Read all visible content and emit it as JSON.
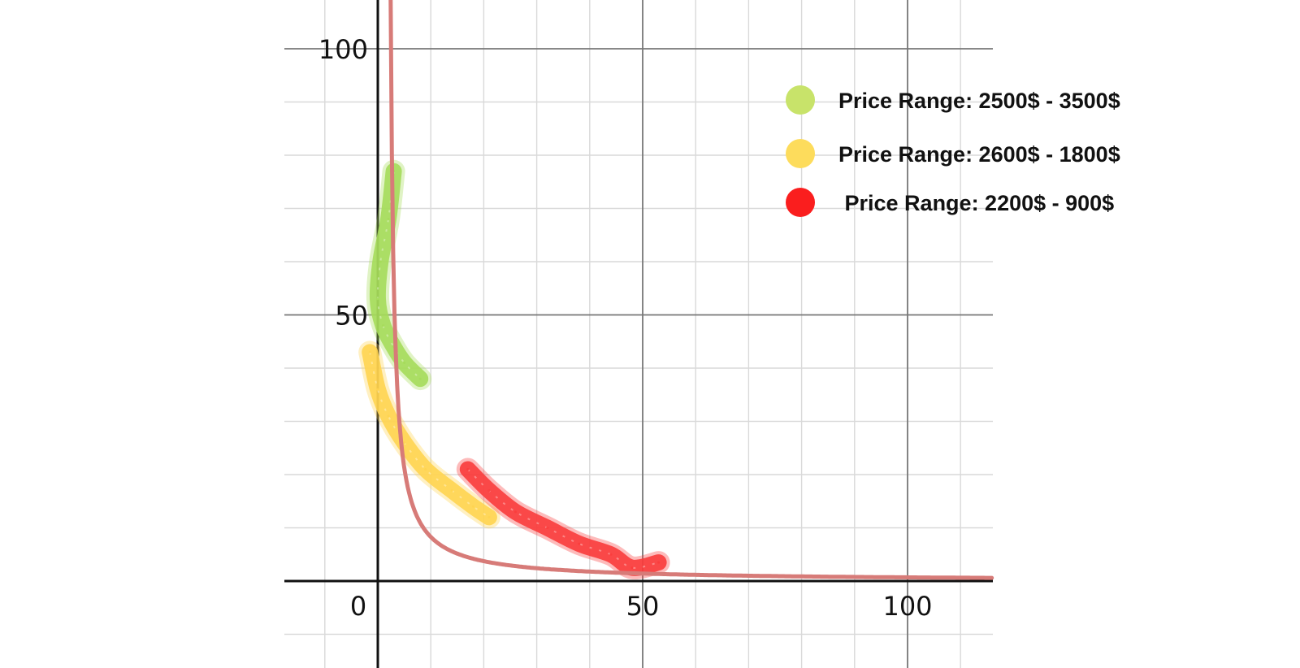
{
  "chart_data": {
    "type": "line",
    "title": "",
    "xlabel": "",
    "ylabel": "",
    "xlim": [
      -18,
      116
    ],
    "ylim": [
      -16,
      109
    ],
    "grid": true,
    "x_ticks": [
      0,
      50,
      100
    ],
    "y_ticks": [
      50,
      100
    ],
    "x_tick_labels": [
      "0",
      "50",
      "100"
    ],
    "y_tick_labels": [
      "50",
      "100"
    ],
    "curve": {
      "formula": "y = 68 / (x - 1.8)",
      "color": "#d77b78",
      "x_range": [
        2.4,
        116
      ]
    },
    "series": [
      {
        "color": "#a5dc5a",
        "points": [
          [
            3,
            77
          ],
          [
            2,
            68
          ],
          [
            0.5,
            60
          ],
          [
            0,
            53
          ],
          [
            1,
            48
          ],
          [
            3,
            44
          ],
          [
            5,
            41
          ],
          [
            8,
            38
          ]
        ]
      },
      {
        "color": "#ffd450",
        "points": [
          [
            -1.5,
            43
          ],
          [
            0,
            36
          ],
          [
            2,
            31
          ],
          [
            5,
            26
          ],
          [
            9,
            21
          ],
          [
            14,
            17
          ],
          [
            18,
            14
          ],
          [
            21,
            12
          ]
        ]
      },
      {
        "color": "#fa3c3c",
        "points": [
          [
            17,
            21
          ],
          [
            21,
            17
          ],
          [
            26,
            13
          ],
          [
            32,
            10
          ],
          [
            38,
            7
          ],
          [
            44,
            5
          ],
          [
            48,
            2.5
          ],
          [
            53,
            3.5
          ]
        ]
      }
    ],
    "legend": {
      "position": "top-right",
      "entries": [
        {
          "label": "Price Range: 2500$ - 3500$",
          "color": "#c8e36a"
        },
        {
          "label": "Price Range: 2600$ - 1800$",
          "color": "#fddc5c"
        },
        {
          "label": " Price Range: 2200$ - 900$",
          "color": "#fa1e1e"
        }
      ]
    }
  }
}
